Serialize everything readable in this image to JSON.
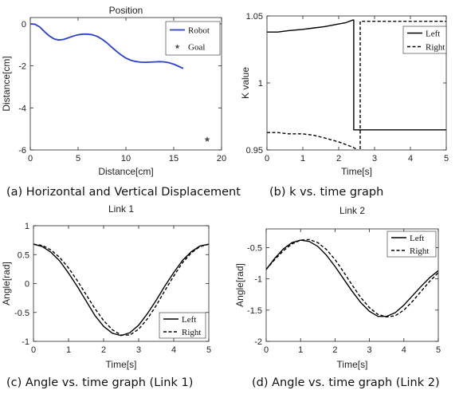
{
  "chart_data": [
    {
      "id": "a",
      "type": "line",
      "title": "Position",
      "xlabel": "Distance[cm]",
      "ylabel": "Distance[cm]",
      "xlim": [
        0,
        20
      ],
      "ylim": [
        -6,
        0.3
      ],
      "xticks": [
        0,
        5,
        10,
        15,
        20
      ],
      "yticks": [
        0,
        -2,
        -4,
        -6
      ],
      "legend_placement": "top-right",
      "grid": false,
      "caption": "(a) Horizontal and Vertical Displacement",
      "series": [
        {
          "name": "Robot",
          "color": "#2b3fd0",
          "style": "solid",
          "x": [
            0,
            0.5,
            1,
            1.5,
            2,
            2.5,
            3,
            3.5,
            4,
            4.5,
            5,
            5.5,
            6,
            6.5,
            7,
            7.5,
            8,
            8.5,
            9,
            9.5,
            10,
            10.5,
            11,
            11.5,
            12,
            12.5,
            13,
            13.5,
            14,
            14.5,
            15,
            15.5,
            16
          ],
          "y": [
            0,
            -0.02,
            -0.15,
            -0.38,
            -0.58,
            -0.72,
            -0.77,
            -0.74,
            -0.66,
            -0.58,
            -0.52,
            -0.49,
            -0.49,
            -0.52,
            -0.6,
            -0.73,
            -0.9,
            -1.1,
            -1.3,
            -1.48,
            -1.63,
            -1.73,
            -1.79,
            -1.82,
            -1.83,
            -1.82,
            -1.81,
            -1.8,
            -1.81,
            -1.85,
            -1.92,
            -2.02,
            -2.12
          ]
        },
        {
          "name": "Goal",
          "color": "#555555",
          "marker": "*",
          "x": [
            18.5
          ],
          "y": [
            -5.5
          ]
        }
      ]
    },
    {
      "id": "b",
      "type": "line",
      "title": "",
      "xlabel": "Time[s]",
      "ylabel": "K value",
      "xlim": [
        0,
        5
      ],
      "ylim": [
        0.95,
        1.05
      ],
      "xticks": [
        0,
        1,
        2,
        3,
        4,
        5
      ],
      "yticks": [
        1.05,
        1,
        0.95
      ],
      "legend_placement": "top-right",
      "grid": false,
      "caption": "(b) k vs. time graph",
      "series": [
        {
          "name": "Left",
          "color": "#000000",
          "style": "solid",
          "x": [
            0,
            0.3,
            0.6,
            1.0,
            1.3,
            1.6,
            2.0,
            2.2,
            2.4,
            2.42,
            2.42,
            3.0,
            4.0,
            5.0
          ],
          "y": [
            1.038,
            1.038,
            1.039,
            1.04,
            1.041,
            1.042,
            1.044,
            1.045,
            1.047,
            1.047,
            0.965,
            0.965,
            0.965,
            0.965
          ]
        },
        {
          "name": "Right",
          "color": "#000000",
          "style": "dashed",
          "x": [
            0,
            0.3,
            0.6,
            1.0,
            1.3,
            1.6,
            2.0,
            2.2,
            2.4,
            2.6,
            2.6,
            3.0,
            4.0,
            5.0
          ],
          "y": [
            0.963,
            0.963,
            0.962,
            0.962,
            0.961,
            0.959,
            0.956,
            0.954,
            0.952,
            0.949,
            1.046,
            1.046,
            1.046,
            1.046
          ]
        }
      ]
    },
    {
      "id": "c",
      "type": "line",
      "title": "Link 1",
      "xlabel": "Time[s]",
      "ylabel": "Angle[rad]",
      "xlim": [
        0,
        5
      ],
      "ylim": [
        -1,
        1
      ],
      "xticks": [
        0,
        1,
        2,
        3,
        4,
        5
      ],
      "yticks": [
        1,
        0.5,
        0,
        -0.5,
        -1
      ],
      "legend_placement": "bottom-right",
      "grid": false,
      "caption": "(c) Angle vs. time graph (Link 1)",
      "series": [
        {
          "name": "Left",
          "color": "#000000",
          "style": "solid",
          "x": [
            0,
            0.25,
            0.5,
            0.75,
            1,
            1.25,
            1.5,
            1.75,
            2,
            2.25,
            2.5,
            2.75,
            3,
            3.25,
            3.5,
            3.75,
            4,
            4.25,
            4.5,
            4.75,
            5
          ],
          "y": [
            0.68,
            0.64,
            0.54,
            0.39,
            0.18,
            -0.05,
            -0.3,
            -0.55,
            -0.74,
            -0.86,
            -0.9,
            -0.85,
            -0.72,
            -0.52,
            -0.29,
            -0.04,
            0.19,
            0.4,
            0.55,
            0.65,
            0.68
          ]
        },
        {
          "name": "Right",
          "color": "#000000",
          "style": "dashed",
          "x": [
            0,
            0.25,
            0.5,
            0.75,
            1,
            1.25,
            1.5,
            1.75,
            2,
            2.25,
            2.5,
            2.75,
            3,
            3.25,
            3.5,
            3.75,
            4,
            4.25,
            4.5,
            4.75,
            5
          ],
          "y": [
            0.68,
            0.66,
            0.58,
            0.45,
            0.27,
            0.05,
            -0.19,
            -0.43,
            -0.64,
            -0.8,
            -0.89,
            -0.89,
            -0.79,
            -0.61,
            -0.38,
            -0.12,
            0.13,
            0.36,
            0.53,
            0.64,
            0.68
          ]
        }
      ]
    },
    {
      "id": "d",
      "type": "line",
      "title": "Link 2",
      "xlabel": "Time[s]",
      "ylabel": "Angle[rad]",
      "xlim": [
        0,
        5
      ],
      "ylim": [
        -2,
        -0.2
      ],
      "xticks": [
        0,
        1,
        2,
        3,
        4,
        5
      ],
      "yticks": [
        -0.5,
        -1,
        -1.5,
        -2
      ],
      "legend_placement": "top-right",
      "grid": false,
      "caption": "(d) Angle vs. time graph (Link 2)",
      "series": [
        {
          "name": "Left",
          "color": "#000000",
          "style": "solid",
          "x": [
            0,
            0.25,
            0.5,
            0.75,
            1,
            1.25,
            1.5,
            1.75,
            2,
            2.25,
            2.5,
            2.75,
            3,
            3.25,
            3.5,
            3.75,
            4,
            4.25,
            4.5,
            4.75,
            5
          ],
          "y": [
            -0.85,
            -0.67,
            -0.52,
            -0.42,
            -0.38,
            -0.4,
            -0.48,
            -0.62,
            -0.8,
            -1.0,
            -1.2,
            -1.38,
            -1.52,
            -1.6,
            -1.6,
            -1.54,
            -1.42,
            -1.27,
            -1.12,
            -0.98,
            -0.87
          ]
        },
        {
          "name": "Right",
          "color": "#000000",
          "style": "dashed",
          "x": [
            0,
            0.25,
            0.5,
            0.75,
            1,
            1.25,
            1.5,
            1.75,
            2,
            2.25,
            2.5,
            2.75,
            3,
            3.25,
            3.5,
            3.75,
            4,
            4.25,
            4.5,
            4.75,
            5
          ],
          "y": [
            -0.85,
            -0.69,
            -0.55,
            -0.44,
            -0.38,
            -0.37,
            -0.42,
            -0.53,
            -0.69,
            -0.89,
            -1.1,
            -1.3,
            -1.46,
            -1.57,
            -1.61,
            -1.59,
            -1.5,
            -1.36,
            -1.2,
            -1.04,
            -0.9
          ]
        }
      ]
    }
  ]
}
